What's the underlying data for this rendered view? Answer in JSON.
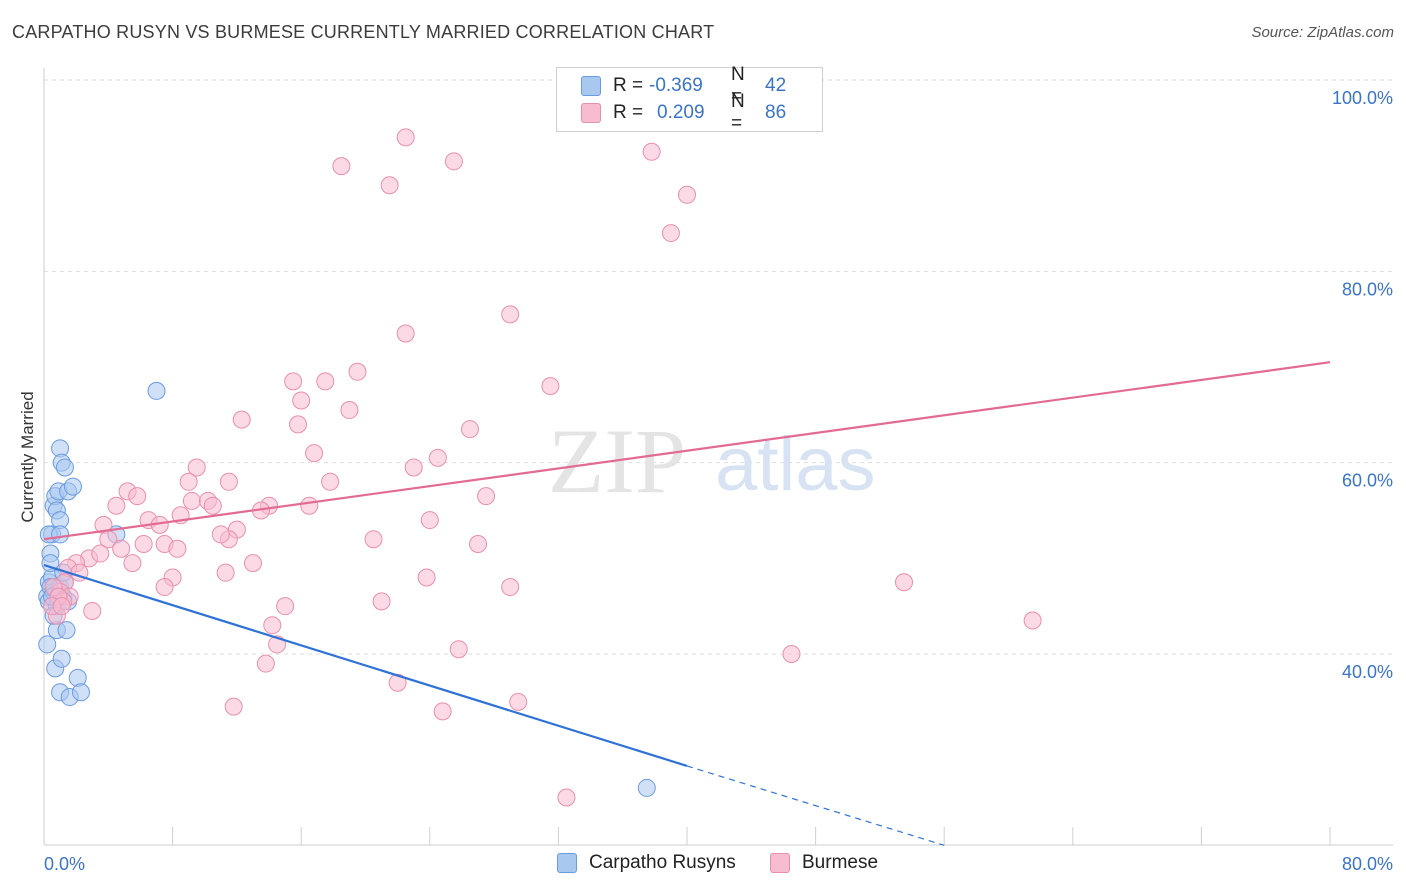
{
  "title": "CARPATHO RUSYN VS BURMESE CURRENTLY MARRIED CORRELATION CHART",
  "source": "Source: ZipAtlas.com",
  "watermark": {
    "zip": "ZIP",
    "atlas": "atlas"
  },
  "legend": {
    "rows": [
      {
        "r_label": "R =",
        "r_value": "-0.369",
        "n_label": "N =",
        "n_value": "42"
      },
      {
        "r_label": "R =",
        "r_value": "0.209",
        "n_label": "N =",
        "n_value": "86"
      }
    ]
  },
  "colors": {
    "blue_fill": "#a9c8f0",
    "blue_stroke": "#6b9be0",
    "blue_line": "#2f72d6",
    "pink_fill": "#f7bcd0",
    "pink_stroke": "#e98fae",
    "pink_line": "#e26a93",
    "grid": "#dedede",
    "axis_text": "#3a74c9"
  },
  "chart_data": {
    "type": "scatter",
    "title": "CARPATHO RUSYN VS BURMESE CURRENTLY MARRIED CORRELATION CHART",
    "xlabel": "",
    "ylabel": "Currently Married",
    "xlim": [
      0,
      80
    ],
    "ylim": [
      20,
      103
    ],
    "x_tick_labels": [
      "0.0%",
      "80.0%"
    ],
    "y_ticks": [
      40,
      60,
      80,
      100
    ],
    "y_tick_labels": [
      "40.0%",
      "60.0%",
      "80.0%",
      "100.0%"
    ],
    "grid": true,
    "series": [
      {
        "name": "Carpatho Rusyns",
        "color": "blue",
        "r": -0.369,
        "n": 42,
        "trend": {
          "x0": 0,
          "y0": 49.3,
          "x1": 40,
          "y1": 28.3,
          "dash_to_x": 56,
          "dash_to_y": 20
        },
        "points": [
          [
            0.2,
            46
          ],
          [
            0.3,
            47.5
          ],
          [
            0.4,
            50.5
          ],
          [
            0.5,
            52.5
          ],
          [
            0.6,
            55.5
          ],
          [
            0.7,
            56.5
          ],
          [
            0.8,
            55
          ],
          [
            0.9,
            57
          ],
          [
            1.0,
            54
          ],
          [
            1.0,
            61.5
          ],
          [
            1.1,
            60
          ],
          [
            1.3,
            59.5
          ],
          [
            1.5,
            57
          ],
          [
            1.8,
            57.5
          ],
          [
            0.3,
            45.5
          ],
          [
            0.5,
            48
          ],
          [
            0.6,
            46.5
          ],
          [
            0.8,
            45
          ],
          [
            1.0,
            47
          ],
          [
            1.2,
            46
          ],
          [
            1.5,
            45.5
          ],
          [
            0.2,
            41
          ],
          [
            0.8,
            42.5
          ],
          [
            1.4,
            42.5
          ],
          [
            0.7,
            38.5
          ],
          [
            1.1,
            39.5
          ],
          [
            2.1,
            37.5
          ],
          [
            1.0,
            36
          ],
          [
            1.6,
            35.5
          ],
          [
            2.3,
            36
          ],
          [
            0.4,
            49.5
          ],
          [
            0.3,
            52.5
          ],
          [
            1.0,
            52.5
          ],
          [
            4.5,
            52.5
          ],
          [
            7.0,
            67.5
          ],
          [
            0.4,
            47
          ],
          [
            1.3,
            47.5
          ],
          [
            0.6,
            44
          ],
          [
            0.9,
            46
          ],
          [
            1.2,
            48.5
          ],
          [
            0.5,
            46
          ],
          [
            37.5,
            26
          ]
        ]
      },
      {
        "name": "Burmese",
        "color": "pink",
        "r": 0.209,
        "n": 86,
        "trend": {
          "x0": 0,
          "y0": 52.0,
          "x1": 80,
          "y1": 70.5
        },
        "points": [
          [
            22.5,
            94
          ],
          [
            25.5,
            91.5
          ],
          [
            37.8,
            92.5
          ],
          [
            18.5,
            91
          ],
          [
            21.5,
            89
          ],
          [
            40.0,
            88
          ],
          [
            39.0,
            84
          ],
          [
            29.0,
            75.5
          ],
          [
            22.5,
            73.5
          ],
          [
            15.5,
            68.5
          ],
          [
            17.5,
            68.5
          ],
          [
            19.5,
            69.5
          ],
          [
            31.5,
            68
          ],
          [
            16.0,
            66.5
          ],
          [
            19.0,
            65.5
          ],
          [
            12.3,
            64.5
          ],
          [
            15.8,
            64
          ],
          [
            26.5,
            63.5
          ],
          [
            16.8,
            61
          ],
          [
            24.5,
            60.5
          ],
          [
            9.5,
            59.5
          ],
          [
            23.0,
            59.5
          ],
          [
            11.5,
            58
          ],
          [
            17.8,
            58
          ],
          [
            9.0,
            58
          ],
          [
            5.2,
            57
          ],
          [
            5.8,
            56.5
          ],
          [
            9.2,
            56
          ],
          [
            10.2,
            56
          ],
          [
            27.5,
            56.5
          ],
          [
            14.0,
            55.5
          ],
          [
            13.5,
            55
          ],
          [
            16.5,
            55.5
          ],
          [
            4.5,
            55.5
          ],
          [
            10.5,
            55.5
          ],
          [
            6.5,
            54
          ],
          [
            8.5,
            54.5
          ],
          [
            7.2,
            53.5
          ],
          [
            24.0,
            54
          ],
          [
            3.7,
            53.5
          ],
          [
            12.0,
            53
          ],
          [
            4.0,
            52
          ],
          [
            11.5,
            52
          ],
          [
            20.5,
            52
          ],
          [
            27.0,
            51.5
          ],
          [
            6.2,
            51.5
          ],
          [
            7.5,
            51.5
          ],
          [
            4.8,
            51
          ],
          [
            8.3,
            51
          ],
          [
            2.8,
            50
          ],
          [
            3.5,
            50.5
          ],
          [
            5.5,
            49.5
          ],
          [
            13.0,
            49.5
          ],
          [
            2.0,
            49.5
          ],
          [
            1.5,
            49
          ],
          [
            2.2,
            48.5
          ],
          [
            8.0,
            48
          ],
          [
            11.3,
            48.5
          ],
          [
            23.8,
            48
          ],
          [
            1.3,
            47.5
          ],
          [
            7.5,
            47
          ],
          [
            29.0,
            47
          ],
          [
            53.5,
            47.5
          ],
          [
            1.0,
            46.5
          ],
          [
            1.6,
            46
          ],
          [
            1.2,
            45.5
          ],
          [
            21.0,
            45.5
          ],
          [
            15.0,
            45
          ],
          [
            3.0,
            44.5
          ],
          [
            0.8,
            44
          ],
          [
            61.5,
            43.5
          ],
          [
            14.2,
            43
          ],
          [
            14.5,
            41
          ],
          [
            25.8,
            40.5
          ],
          [
            46.5,
            40
          ],
          [
            13.8,
            39
          ],
          [
            22.0,
            37
          ],
          [
            29.5,
            35
          ],
          [
            11.8,
            34.5
          ],
          [
            24.8,
            34
          ],
          [
            32.5,
            25
          ],
          [
            0.6,
            47
          ],
          [
            0.9,
            46
          ],
          [
            0.5,
            45
          ],
          [
            1.1,
            45
          ],
          [
            11.0,
            52.5
          ]
        ]
      }
    ]
  },
  "bottom_legend": [
    {
      "label": "Carpatho Rusyns"
    },
    {
      "label": "Burmese"
    }
  ]
}
